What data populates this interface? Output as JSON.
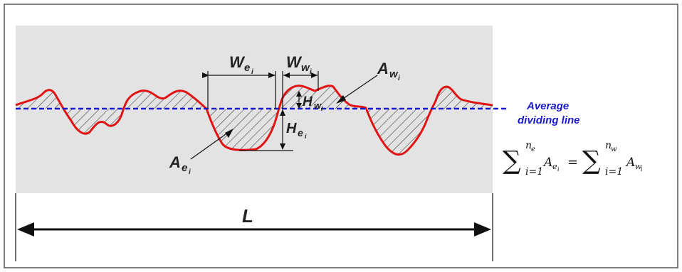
{
  "labels": {
    "L": "L",
    "W_e": {
      "main": "W",
      "sub": "e",
      "subsub": "i"
    },
    "W_w": {
      "main": "W",
      "sub": "w",
      "subsub": "i"
    },
    "A_w": {
      "main": "A",
      "sub": "w",
      "subsub": "i"
    },
    "A_e": {
      "main": "A",
      "sub": "e",
      "subsub": "i"
    },
    "H_w": {
      "main": "H",
      "sub": "w",
      "subsub": "i"
    },
    "H_e": {
      "main": "H",
      "sub": "e",
      "subsub": "i"
    },
    "average_line_1": "Average",
    "average_line_2": "dividing line"
  },
  "equation": {
    "sum_symbol": "∑",
    "upper_left": "n",
    "upper_left_sub": "e",
    "lower_left": "i=1",
    "term_left": "A",
    "term_left_sub": "e",
    "term_left_subsub": "i",
    "equals": "=",
    "upper_right": "n",
    "upper_right_sub": "w",
    "lower_right": "i=1",
    "term_right": "A",
    "term_right_sub": "w",
    "term_right_subsub": "i"
  },
  "colors": {
    "profile": "#e01414",
    "average_line": "#1a1acc",
    "panel": "#e3e3e3",
    "border": "#555555",
    "hatch": "#333333"
  }
}
